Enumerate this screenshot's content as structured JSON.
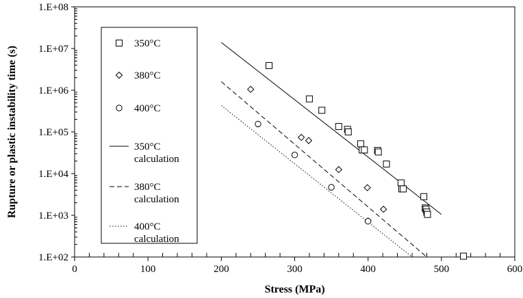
{
  "chart_data": {
    "type": "scatter",
    "xlabel": "Stress (MPa)",
    "ylabel": "Rupture or plastic instability time (s)",
    "xlim": [
      0,
      600
    ],
    "ylim": [
      100,
      100000000
    ],
    "y_scale": "log",
    "grid": false,
    "legend_position": "upper-left",
    "x_ticks": [
      0,
      100,
      200,
      300,
      400,
      500,
      600
    ],
    "x_tick_labels": [
      "0",
      "100",
      "200",
      "300",
      "400",
      "500",
      "600"
    ],
    "y_ticks": [
      100,
      1000,
      10000,
      100000,
      1000000,
      10000000,
      100000000
    ],
    "y_tick_labels": [
      "1.E+02",
      "1.E+03",
      "1.E+04",
      "1.E+05",
      "1.E+06",
      "1.E+07",
      "1.E+08"
    ],
    "series": [
      {
        "name": "350°C",
        "kind": "scatter",
        "marker": "square",
        "points": [
          [
            265,
            3900000
          ],
          [
            320,
            620000
          ],
          [
            337,
            330000
          ],
          [
            360,
            135000
          ],
          [
            372,
            115000
          ],
          [
            373,
            100000
          ],
          [
            390,
            52000
          ],
          [
            392,
            37000
          ],
          [
            395,
            37000
          ],
          [
            413,
            36000
          ],
          [
            414,
            33000
          ],
          [
            425,
            17000
          ],
          [
            445,
            6000
          ],
          [
            446,
            4300
          ],
          [
            448,
            4300
          ],
          [
            476,
            2800
          ],
          [
            478,
            1500
          ],
          [
            479,
            1400
          ],
          [
            480,
            1200
          ],
          [
            481,
            1050
          ],
          [
            530,
            105
          ]
        ]
      },
      {
        "name": "380°C",
        "kind": "scatter",
        "marker": "diamond",
        "points": [
          [
            240,
            1050000
          ],
          [
            309,
            74000
          ],
          [
            319,
            62000
          ],
          [
            360,
            12500
          ],
          [
            399,
            4600
          ],
          [
            421,
            1400
          ],
          [
            400,
            730
          ]
        ]
      },
      {
        "name": "400°C",
        "kind": "scatter",
        "marker": "circle",
        "points": [
          [
            250,
            155000
          ],
          [
            300,
            28000
          ],
          [
            350,
            4700
          ],
          [
            400,
            720
          ]
        ]
      },
      {
        "name": "350°C calculation",
        "label_lines": [
          "350°C",
          "calculation"
        ],
        "kind": "line",
        "style": "solid",
        "points": [
          [
            200,
            14000000
          ],
          [
            500,
            1050
          ]
        ]
      },
      {
        "name": "380°C calculation",
        "label_lines": [
          "380°C",
          "calculation"
        ],
        "kind": "line",
        "style": "dashed",
        "points": [
          [
            200,
            1600000
          ],
          [
            480,
            100
          ]
        ]
      },
      {
        "name": "400°C calculation",
        "label_lines": [
          "400°C",
          "calculation"
        ],
        "kind": "line",
        "style": "dotted",
        "points": [
          [
            200,
            430000
          ],
          [
            460,
            100
          ]
        ]
      }
    ]
  }
}
